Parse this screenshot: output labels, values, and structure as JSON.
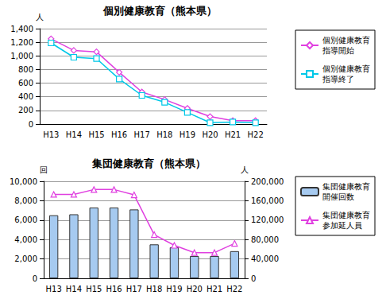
{
  "chart_data": [
    {
      "type": "line",
      "title": "個別健康教育（熊本県）",
      "ylabel": "人",
      "categories": [
        "H13",
        "H14",
        "H15",
        "H16",
        "H17",
        "H18",
        "H19",
        "H20",
        "H21",
        "H22"
      ],
      "series": [
        {
          "name": "個別健康教育 指導開始",
          "color": "#e040e0",
          "marker": "diamond",
          "values": [
            1250,
            1080,
            1060,
            760,
            470,
            360,
            230,
            110,
            50,
            50
          ]
        },
        {
          "name": "個別健康教育 指導終了",
          "color": "#00c8e8",
          "marker": "square",
          "values": [
            1190,
            980,
            960,
            660,
            420,
            320,
            170,
            20,
            30,
            20
          ]
        }
      ],
      "ylim": [
        0,
        1400
      ],
      "yticks": [
        0,
        200,
        400,
        600,
        800,
        {
          "value": 1000,
          "label": "1,000"
        },
        {
          "value": 1200,
          "label": "1,200"
        },
        {
          "value": 1400,
          "label": "1,400"
        }
      ],
      "grid": true,
      "legend": "right"
    },
    {
      "type": "bar",
      "title": "集団健康教育（熊本県）",
      "ylabel": "回",
      "y2label": "人",
      "categories": [
        "H13",
        "H14",
        "H15",
        "H16",
        "H17",
        "H18",
        "H19",
        "H20",
        "H21",
        "H22"
      ],
      "series": [
        {
          "name": "集団健康教育 開催回数",
          "type": "bar",
          "color": "#a6caf0",
          "values": [
            6500,
            6600,
            7300,
            7300,
            7100,
            3500,
            3200,
            2300,
            2300,
            2800
          ]
        },
        {
          "name": "集団健康教育 参加延人員",
          "type": "line",
          "axis": "y2",
          "color": "#e040e0",
          "marker": "triangle",
          "values": [
            173000,
            173000,
            183000,
            183000,
            172000,
            90000,
            68000,
            53000,
            53000,
            72000
          ]
        }
      ],
      "ylim": [
        0,
        10000
      ],
      "yticks": [
        0,
        {
          "value": 2000,
          "label": "2,000"
        },
        {
          "value": 4000,
          "label": "4,000"
        },
        {
          "value": 6000,
          "label": "6,000"
        },
        {
          "value": 8000,
          "label": "8,000"
        },
        {
          "value": 10000,
          "label": "10,000"
        }
      ],
      "y2lim": [
        0,
        200000
      ],
      "y2ticks": [
        0,
        {
          "value": 40000,
          "label": "40,000"
        },
        {
          "value": 80000,
          "label": "80,000"
        },
        {
          "value": 120000,
          "label": "120,000"
        },
        {
          "value": 160000,
          "label": "160,000"
        },
        {
          "value": 200000,
          "label": "200,000"
        }
      ],
      "grid": true,
      "legend": "right"
    }
  ]
}
